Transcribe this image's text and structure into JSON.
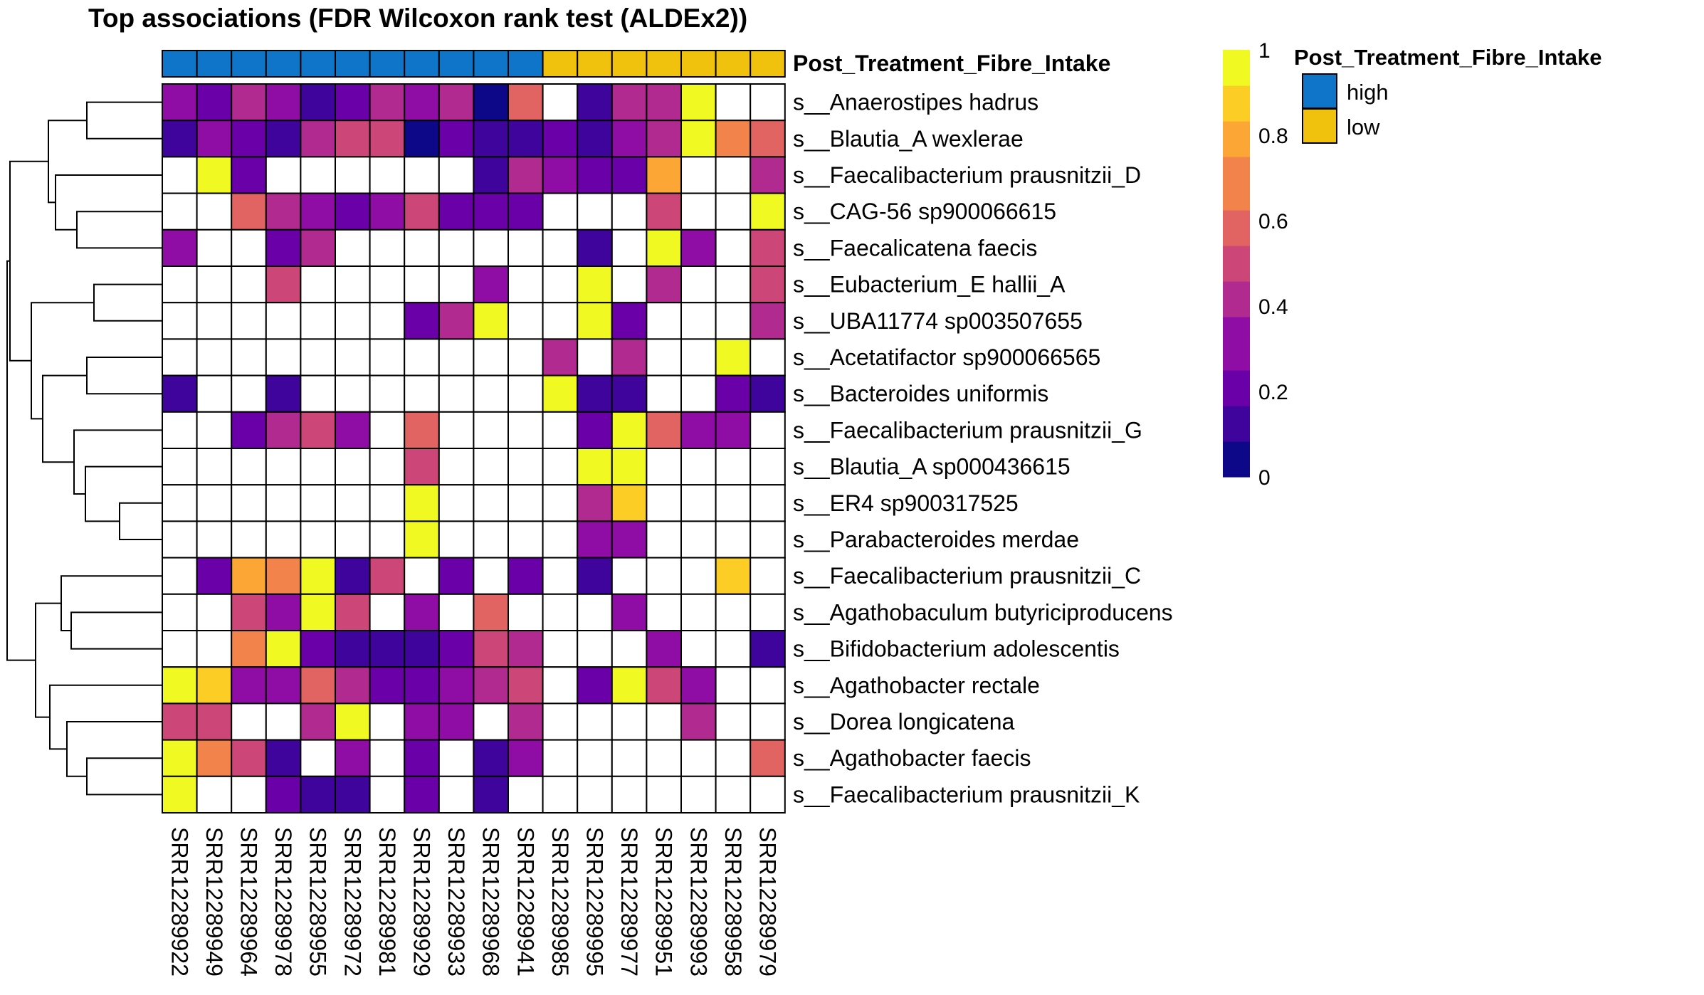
{
  "chart_data": {
    "type": "heatmap",
    "title": "Top associations (FDR Wilcoxon rank test (ALDEx2))",
    "annotation_label": "Post_Treatment_Fibre_Intake",
    "rows": [
      "s__Anaerostipes hadrus",
      "s__Blautia_A wexlerae",
      "s__Faecalibacterium prausnitzii_D",
      "s__CAG-56 sp900066615",
      "s__Faecalicatena faecis",
      "s__Eubacterium_E hallii_A",
      "s__UBA11774 sp003507655",
      "s__Acetatifactor sp900066565",
      "s__Bacteroides uniformis",
      "s__Faecalibacterium prausnitzii_G",
      "s__Blautia_A sp000436615",
      "s__ER4 sp900317525",
      "s__Parabacteroides merdae",
      "s__Faecalibacterium prausnitzii_C",
      "s__Agathobaculum butyriciproducens",
      "s__Bifidobacterium adolescentis",
      "s__Agathobacter rectale",
      "s__Dorea longicatena",
      "s__Agathobacter faecis",
      "s__Faecalibacterium prausnitzii_K"
    ],
    "columns": [
      "SRR12289922",
      "SRR12289949",
      "SRR12289964",
      "SRR12289978",
      "SRR12289955",
      "SRR12289972",
      "SRR12289981",
      "SRR12289929",
      "SRR12289933",
      "SRR12289968",
      "SRR12289941",
      "SRR12289985",
      "SRR12289995",
      "SRR12289977",
      "SRR12289951",
      "SRR12289993",
      "SRR12289958",
      "SRR12289979"
    ],
    "column_groups": [
      "high",
      "high",
      "high",
      "high",
      "high",
      "high",
      "high",
      "high",
      "high",
      "high",
      "high",
      "low",
      "low",
      "low",
      "low",
      "low",
      "low",
      "low"
    ],
    "values": [
      [
        0.25,
        0.2,
        0.4,
        0.3,
        0.1,
        0.2,
        0.4,
        0.3,
        0.35,
        0.02,
        0.55,
        null,
        0.1,
        0.35,
        0.4,
        0.95,
        null,
        null
      ],
      [
        0.1,
        0.3,
        0.15,
        0.1,
        0.4,
        0.45,
        0.45,
        0.02,
        0.15,
        0.08,
        0.12,
        0.18,
        0.1,
        0.3,
        0.4,
        0.95,
        0.65,
        0.55
      ],
      [
        null,
        0.95,
        0.2,
        null,
        null,
        null,
        null,
        null,
        null,
        0.1,
        0.35,
        0.25,
        0.15,
        0.2,
        0.75,
        null,
        null,
        0.35
      ],
      [
        null,
        null,
        0.6,
        0.35,
        0.3,
        0.2,
        0.25,
        0.5,
        0.15,
        0.15,
        0.2,
        null,
        null,
        null,
        0.5,
        null,
        null,
        0.95
      ],
      [
        0.3,
        null,
        null,
        0.15,
        0.35,
        null,
        null,
        null,
        null,
        null,
        null,
        null,
        0.1,
        null,
        0.95,
        0.3,
        null,
        0.5
      ],
      [
        null,
        null,
        null,
        0.45,
        null,
        null,
        null,
        null,
        null,
        0.3,
        null,
        null,
        0.95,
        null,
        0.35,
        null,
        null,
        0.5
      ],
      [
        null,
        null,
        null,
        null,
        null,
        null,
        null,
        0.2,
        0.35,
        0.95,
        null,
        null,
        0.95,
        0.18,
        null,
        null,
        null,
        0.35
      ],
      [
        null,
        null,
        null,
        null,
        null,
        null,
        null,
        null,
        null,
        null,
        null,
        0.35,
        null,
        0.4,
        null,
        null,
        0.95,
        null
      ],
      [
        0.1,
        null,
        null,
        0.1,
        null,
        null,
        null,
        null,
        null,
        null,
        null,
        0.95,
        0.08,
        0.05,
        null,
        null,
        0.18,
        0.05
      ],
      [
        null,
        null,
        0.15,
        0.4,
        0.5,
        0.25,
        null,
        0.55,
        null,
        null,
        null,
        null,
        0.15,
        0.95,
        0.55,
        0.25,
        0.25,
        null
      ],
      [
        null,
        null,
        null,
        null,
        null,
        null,
        null,
        0.5,
        null,
        null,
        null,
        null,
        0.95,
        0.95,
        null,
        null,
        null,
        null
      ],
      [
        null,
        null,
        null,
        null,
        null,
        null,
        null,
        0.95,
        null,
        null,
        null,
        null,
        0.35,
        0.9,
        null,
        null,
        null,
        null
      ],
      [
        null,
        null,
        null,
        null,
        null,
        null,
        null,
        0.95,
        null,
        null,
        null,
        null,
        0.3,
        0.25,
        null,
        null,
        null,
        null
      ],
      [
        null,
        0.2,
        0.8,
        0.65,
        0.95,
        0.12,
        0.45,
        null,
        0.15,
        null,
        0.2,
        null,
        0.05,
        null,
        null,
        null,
        0.9,
        null
      ],
      [
        null,
        null,
        0.45,
        0.3,
        0.95,
        0.5,
        null,
        0.3,
        null,
        0.55,
        null,
        null,
        null,
        0.3,
        null,
        null,
        null,
        null
      ],
      [
        null,
        null,
        0.65,
        0.95,
        0.15,
        0.12,
        0.1,
        0.05,
        0.2,
        0.5,
        0.4,
        null,
        null,
        null,
        0.25,
        null,
        null,
        0.1
      ],
      [
        0.95,
        0.9,
        0.25,
        0.3,
        0.55,
        0.4,
        0.2,
        0.2,
        0.25,
        0.4,
        0.5,
        null,
        0.2,
        0.95,
        0.5,
        0.3,
        null,
        null
      ],
      [
        0.5,
        0.45,
        null,
        null,
        0.4,
        0.95,
        null,
        0.25,
        0.25,
        null,
        0.35,
        null,
        null,
        null,
        null,
        0.4,
        null,
        null
      ],
      [
        0.95,
        0.65,
        0.5,
        0.1,
        null,
        0.25,
        null,
        0.15,
        null,
        0.1,
        0.25,
        null,
        null,
        null,
        null,
        null,
        null,
        0.55
      ],
      [
        0.95,
        null,
        null,
        0.15,
        0.12,
        0.05,
        null,
        0.2,
        null,
        0.05,
        null,
        null,
        null,
        null,
        null,
        null,
        null,
        null
      ]
    ],
    "group_colors": {
      "high": "#0E75C8",
      "low": "#F1C20D"
    },
    "color_scale": {
      "min": 0,
      "max": 1,
      "ticks": [
        "0",
        "0.2",
        "0.4",
        "0.6",
        "0.8",
        "1"
      ],
      "colors": [
        "#0D0887",
        "#3E049C",
        "#6A00A8",
        "#8F0DA4",
        "#B12A90",
        "#CC4778",
        "#E16462",
        "#F2844B",
        "#FCA636",
        "#FCCE25",
        "#F0F921"
      ]
    },
    "missing_color": "#FFFFFF",
    "legend": {
      "title": "Post_Treatment_Fibre_Intake",
      "items": [
        {
          "label": "high",
          "color": "#0E75C8"
        },
        {
          "label": "low",
          "color": "#F1C20D"
        }
      ]
    }
  }
}
